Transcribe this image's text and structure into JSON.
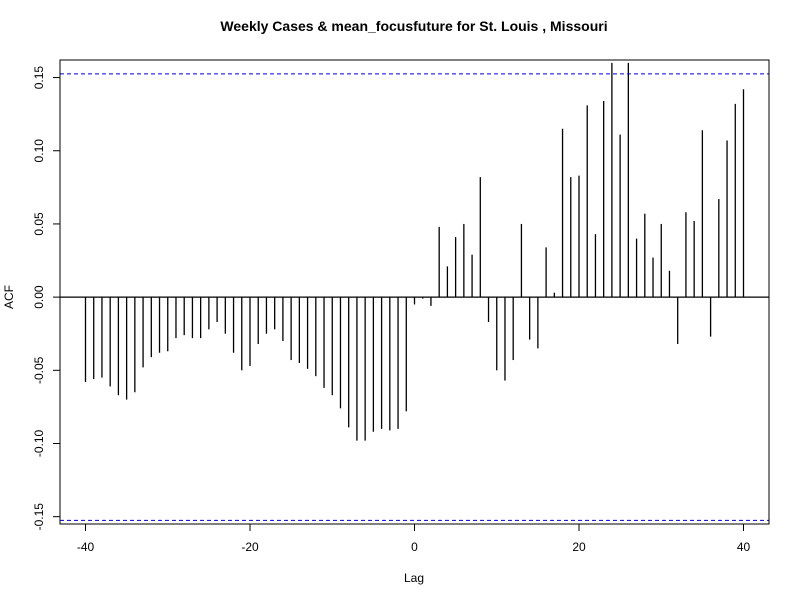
{
  "chart_data": {
    "type": "bar",
    "title": "Weekly Cases & mean_focusfuture for St. Louis , Missouri",
    "xlabel": "Lag",
    "ylabel": "ACF",
    "xlim": [
      -40,
      40
    ],
    "ylim": [
      -0.155,
      0.162
    ],
    "x_ticks": [
      -40,
      -20,
      0,
      20,
      40
    ],
    "x_tick_labels": [
      "-40",
      "-20",
      "0",
      "20",
      "40"
    ],
    "y_ticks": [
      -0.15,
      -0.1,
      -0.05,
      0.0,
      0.05,
      0.1,
      0.15
    ],
    "y_tick_labels": [
      "-0.15",
      "-0.10",
      "-0.05",
      "0.00",
      "0.05",
      "0.10",
      "0.15"
    ],
    "confidence_limit": 0.1525,
    "confidence_color": "#0000CD",
    "bar_color": "#000000",
    "grid": false,
    "series": [
      {
        "lags": [
          -40,
          -39,
          -38,
          -37,
          -36,
          -35,
          -34,
          -33,
          -32,
          -31,
          -30,
          -29,
          -28,
          -27,
          -26,
          -25,
          -24,
          -23,
          -22,
          -21,
          -20,
          -19,
          -18,
          -17,
          -16,
          -15,
          -14,
          -13,
          -12,
          -11,
          -10,
          -9,
          -8,
          -7,
          -6,
          -5,
          -4,
          -3,
          -2,
          -1,
          0,
          1,
          2,
          3,
          4,
          5,
          6,
          7,
          8,
          9,
          10,
          11,
          12,
          13,
          14,
          15,
          16,
          17,
          18,
          19,
          20,
          21,
          22,
          23,
          24,
          25,
          26,
          27,
          28,
          29,
          30,
          31,
          32,
          33,
          34,
          35,
          36,
          37,
          38,
          39,
          40
        ],
        "values": [
          -0.058,
          -0.056,
          -0.055,
          -0.061,
          -0.067,
          -0.07,
          -0.065,
          -0.048,
          -0.041,
          -0.038,
          -0.037,
          -0.028,
          -0.026,
          -0.028,
          -0.028,
          -0.022,
          -0.017,
          -0.025,
          -0.038,
          -0.05,
          -0.047,
          -0.032,
          -0.025,
          -0.022,
          -0.03,
          -0.043,
          -0.045,
          -0.049,
          -0.054,
          -0.062,
          -0.067,
          -0.076,
          -0.089,
          -0.098,
          -0.098,
          -0.092,
          -0.09,
          -0.091,
          -0.09,
          -0.078,
          -0.005,
          -0.001,
          -0.006,
          0.048,
          0.021,
          0.041,
          0.05,
          0.029,
          0.082,
          -0.017,
          -0.05,
          -0.057,
          -0.043,
          0.05,
          -0.029,
          -0.035,
          0.034,
          0.003,
          0.115,
          0.082,
          0.083,
          0.131,
          0.043,
          0.134,
          0.16,
          0.111,
          0.16,
          0.04,
          0.057,
          0.027,
          0.05,
          0.018,
          -0.032,
          0.058,
          0.052,
          0.114,
          -0.027,
          0.067,
          0.107,
          0.132,
          0.142
        ]
      }
    ]
  }
}
